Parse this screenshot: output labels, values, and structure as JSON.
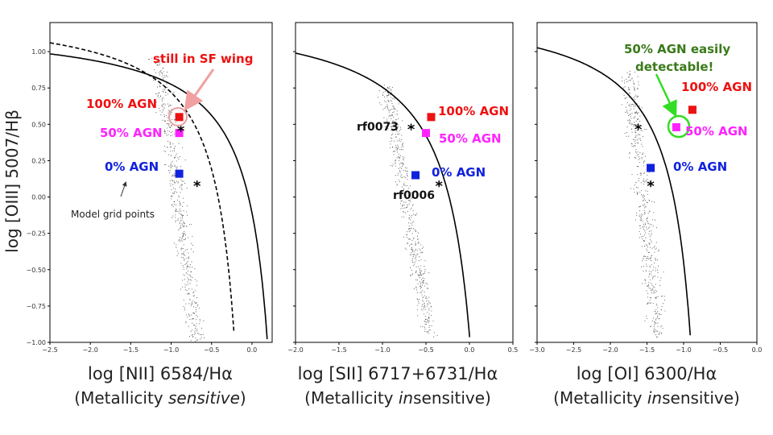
{
  "y_axis_label": "log [OIII]  5007/Hβ",
  "y_ticks": [
    "1.00",
    "0.75",
    "0.50",
    "0.25",
    "0.00",
    "−0.25",
    "−0.50",
    "−0.75",
    "−1.00"
  ],
  "colors": {
    "agn100": "#ee1111",
    "agn50": "#ff22ff",
    "agn0": "#1122dd",
    "callout": "#33dd22",
    "callout_text": "#3a7a1a",
    "arrow": "#f0a0a0",
    "points": "#555555"
  },
  "panels": [
    {
      "xlabel": "log [NII] 6584/Hα",
      "sub_pre": "(Metallicity ",
      "sub_em": "sensitive",
      "sub_post": ")",
      "x_ticks": [
        "−2.5",
        "−2.0",
        "−1.5",
        "−1.0",
        "−0.5",
        "0.0"
      ]
    },
    {
      "xlabel": "log [SII] 6717+6731/Hα",
      "sub_pre": "(Metallicity ",
      "sub_em": "in",
      "sub_post": "sensitive)",
      "x_ticks": [
        "−2.0",
        "−1.5",
        "−1.0",
        "−0.5",
        "0.0",
        "0.5"
      ]
    },
    {
      "xlabel": "log [OI] 6300/Hα",
      "sub_pre": "(Metallicity ",
      "sub_em": "in",
      "sub_post": "sensitive)",
      "x_ticks": [
        "−3.0",
        "−2.5",
        "−2.0",
        "−1.5",
        "−1.0",
        "−0.5",
        "0.0"
      ]
    }
  ],
  "annotations": {
    "p1_agn100": "100% AGN",
    "p1_agn50": "50% AGN",
    "p1_agn0": "0% AGN",
    "p1_sfwing": "still in SF wing",
    "p1_grid": "Model grid points",
    "p2_agn100": "100% AGN",
    "p2_agn50": "50% AGN",
    "p2_agn0": "0% AGN",
    "p2_rf0073": "rf0073",
    "p2_rf0006": "rf0006",
    "p3_agn100": "100% AGN",
    "p3_agn50": "50% AGN",
    "p3_agn0": "0% AGN",
    "p3_callout_1": "50% AGN easily",
    "p3_callout_2": "detectable!"
  },
  "chart_data": [
    {
      "type": "scatter",
      "xlabel": "log [NII] 6584/Hα",
      "ylabel": "log [OIII]  5007/Hβ",
      "xlim": [
        -2.5,
        0.25
      ],
      "ylim": [
        -1.0,
        1.2
      ],
      "x_ticks": [
        -2.5,
        -2.0,
        -1.5,
        -1.0,
        -0.5,
        0.0
      ],
      "y_ticks": [
        1.0,
        0.75,
        0.5,
        0.25,
        0.0,
        -0.25,
        -0.5,
        -0.75,
        -1.0
      ],
      "series": [
        {
          "name": "100% AGN",
          "marker": "square",
          "points": [
            [
              -0.9,
              0.55
            ]
          ]
        },
        {
          "name": "50% AGN",
          "marker": "square",
          "points": [
            [
              -0.9,
              0.44
            ]
          ]
        },
        {
          "name": "0% AGN",
          "marker": "square",
          "points": [
            [
              -0.9,
              0.16
            ]
          ]
        },
        {
          "name": "",
          "marker": "star",
          "points": [
            [
              -0.88,
              0.46
            ],
            [
              -0.68,
              0.08
            ]
          ]
        }
      ],
      "curves": [
        {
          "style": "solid",
          "form": "0.61/(x-0.47)+1.19"
        },
        {
          "style": "dashed",
          "form": "0.61/(x-0.05)+1.3"
        }
      ]
    },
    {
      "type": "scatter",
      "xlabel": "log [SII] 6717+6731/Hα",
      "ylabel": "log [OIII]  5007/Hβ",
      "xlim": [
        -2.0,
        0.5
      ],
      "ylim": [
        -1.0,
        1.2
      ],
      "x_ticks": [
        -2.0,
        -1.5,
        -1.0,
        -0.5,
        0.0,
        0.5
      ],
      "y_ticks": [
        1.0,
        0.75,
        0.5,
        0.25,
        0.0,
        -0.25,
        -0.5,
        -0.75,
        -1.0
      ],
      "series": [
        {
          "name": "100% AGN",
          "marker": "square",
          "points": [
            [
              -0.44,
              0.55
            ]
          ]
        },
        {
          "name": "50% AGN",
          "marker": "square",
          "points": [
            [
              -0.5,
              0.44
            ]
          ]
        },
        {
          "name": "0% AGN",
          "marker": "square",
          "points": [
            [
              -0.62,
              0.15
            ]
          ]
        },
        {
          "name": "",
          "marker": "star",
          "points": [
            [
              -0.67,
              0.47
            ],
            [
              -0.35,
              0.08
            ]
          ]
        }
      ],
      "curves": [
        {
          "style": "solid",
          "form": "0.72/(x-0.32)+1.30"
        }
      ]
    },
    {
      "type": "scatter",
      "xlabel": "log [OI] 6300/Hα",
      "ylabel": "log [OIII]  5007/Hβ",
      "xlim": [
        -3.0,
        0.0
      ],
      "ylim": [
        -1.0,
        1.2
      ],
      "x_ticks": [
        -3.0,
        -2.5,
        -2.0,
        -1.5,
        -1.0,
        -0.5,
        0.0
      ],
      "y_ticks": [
        1.0,
        0.75,
        0.5,
        0.25,
        0.0,
        -0.25,
        -0.5,
        -0.75,
        -1.0
      ],
      "series": [
        {
          "name": "100% AGN",
          "marker": "square",
          "points": [
            [
              -0.88,
              0.6
            ]
          ]
        },
        {
          "name": "50% AGN",
          "marker": "square",
          "points": [
            [
              -1.1,
              0.48
            ]
          ]
        },
        {
          "name": "0% AGN",
          "marker": "square",
          "points": [
            [
              -1.45,
              0.2
            ]
          ]
        },
        {
          "name": "",
          "marker": "star",
          "points": [
            [
              -1.62,
              0.47
            ],
            [
              -1.45,
              0.08
            ]
          ]
        }
      ],
      "curves": [
        {
          "style": "solid",
          "form": "0.73/(x+0.59)+1.33"
        }
      ]
    }
  ]
}
